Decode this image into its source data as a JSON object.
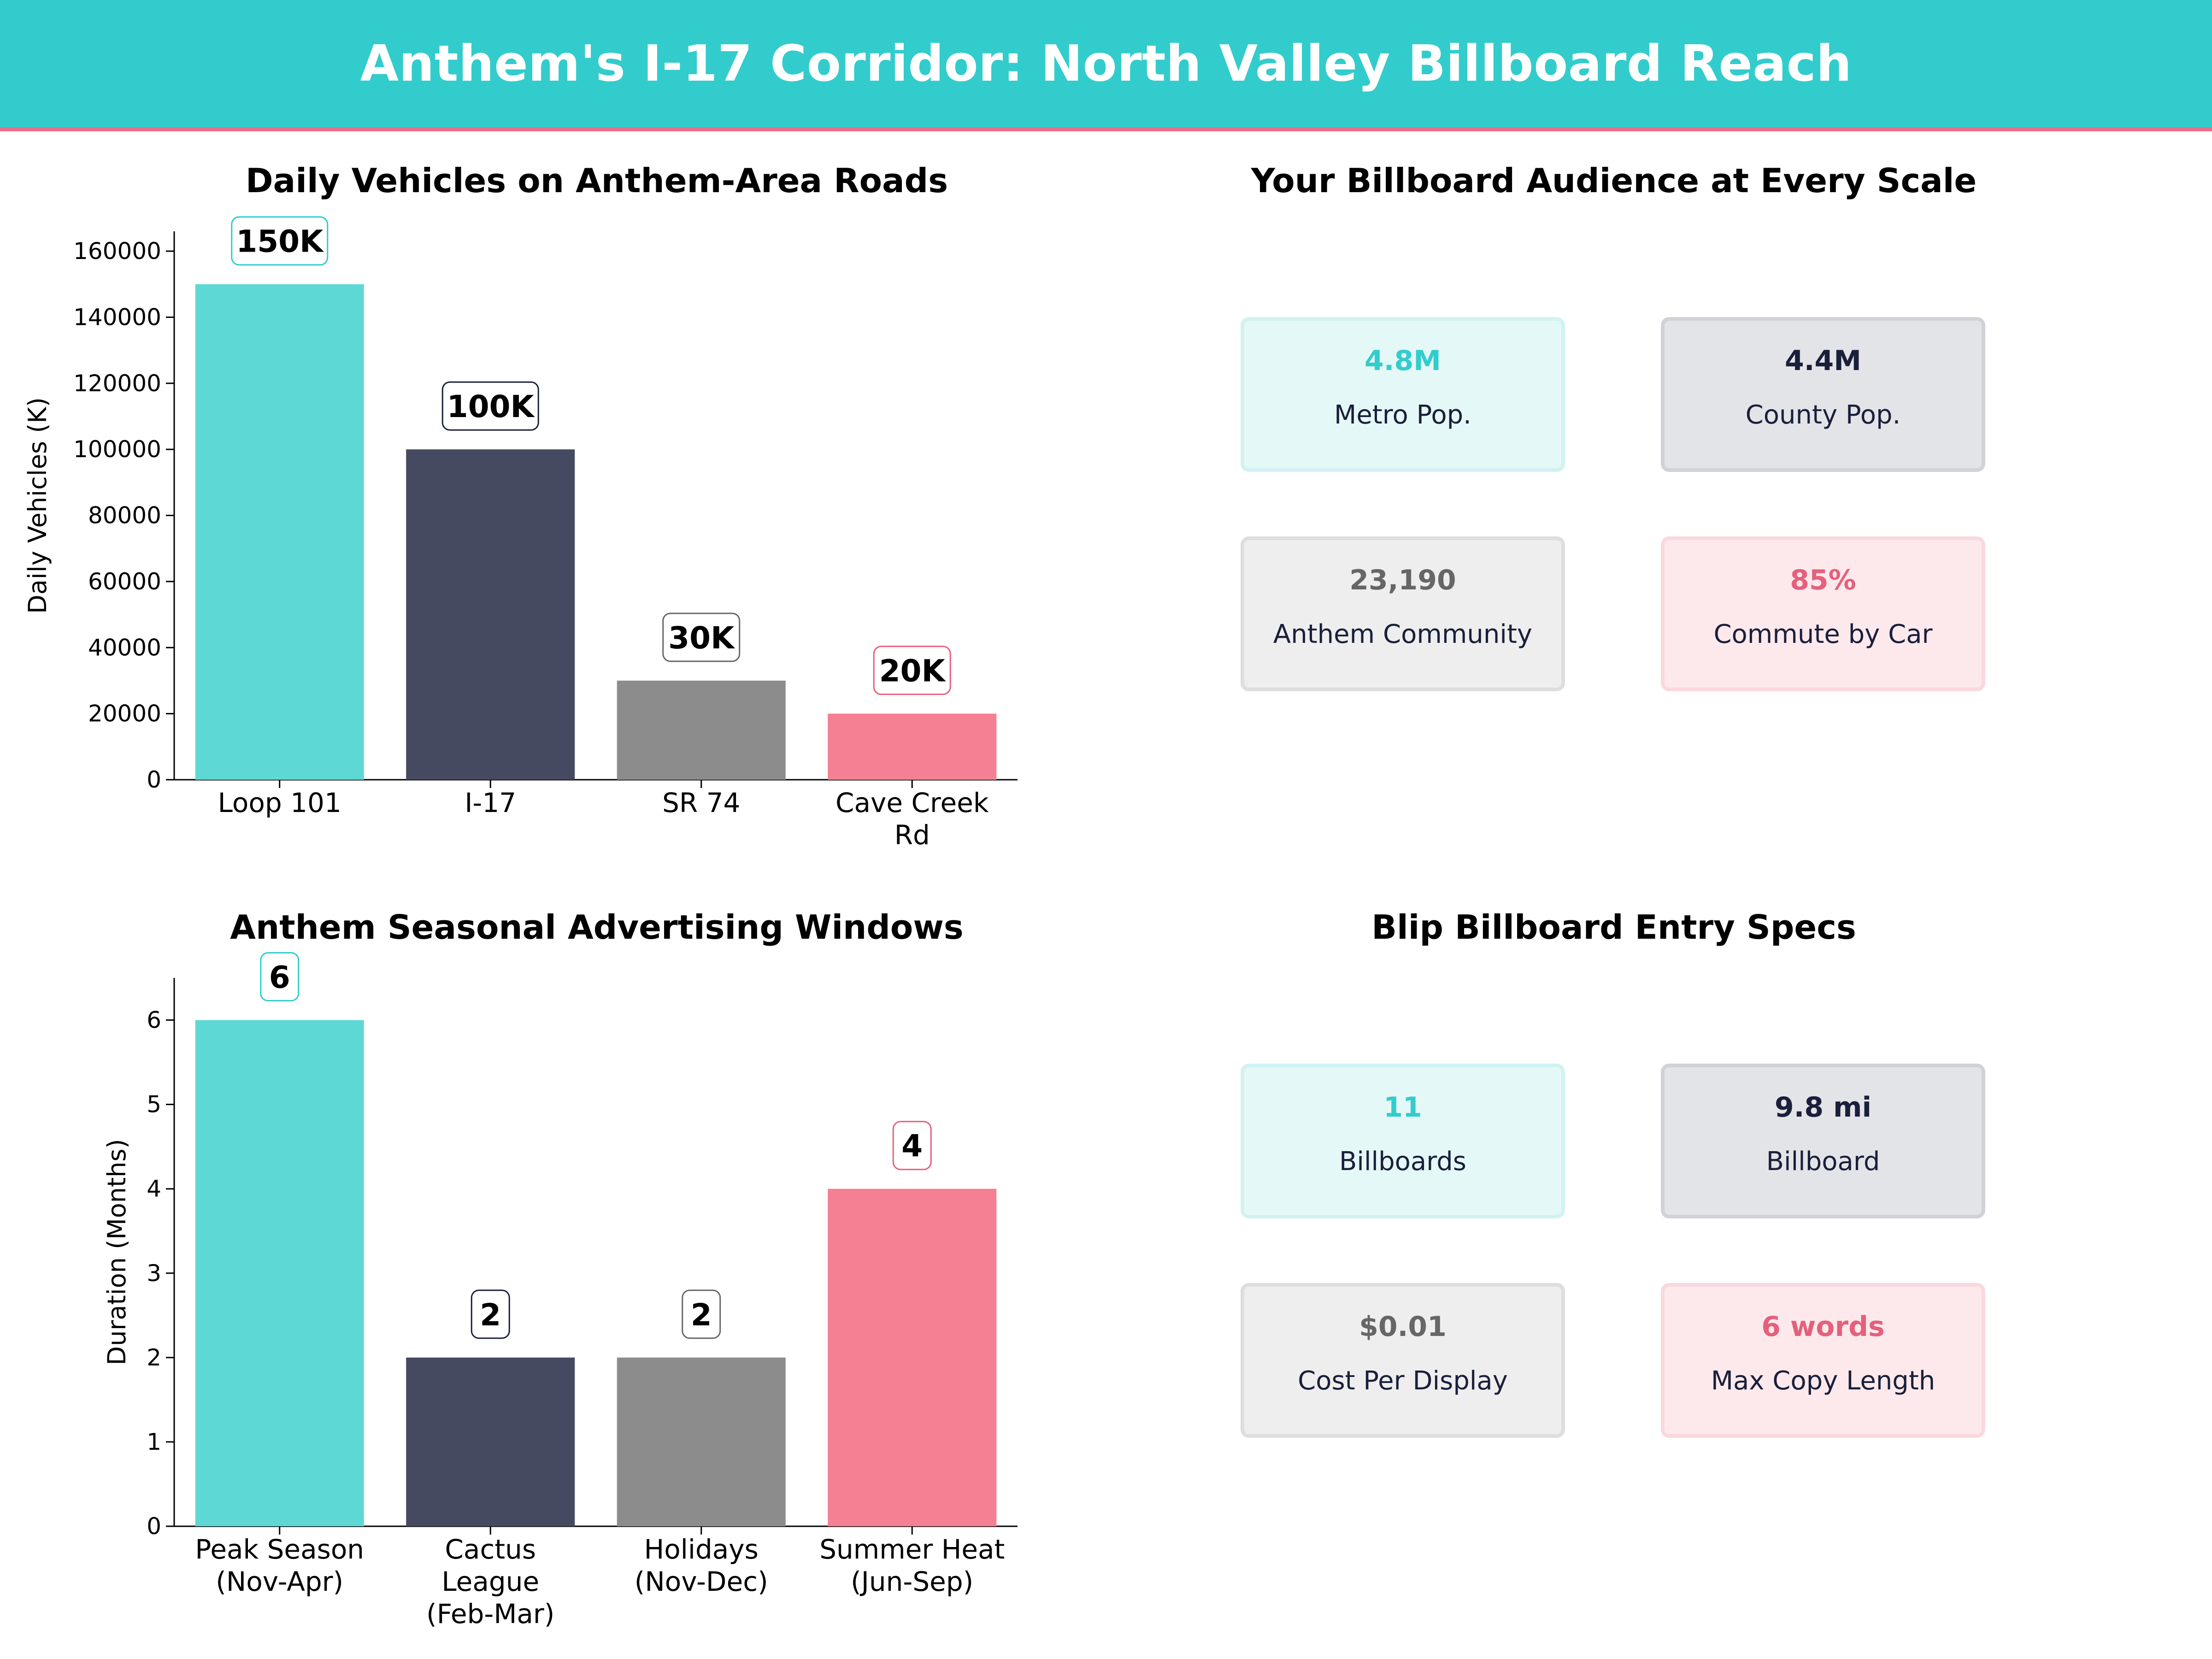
{
  "page_title": "Anthem's I-17 Corridor: North Valley Billboard Reach",
  "colors": {
    "teal": "#5ed8d5",
    "navy": "#464a60",
    "gray": "#8c8c8c",
    "pink": "#f57f93",
    "accent_line": "#ea6f88"
  },
  "chart_data": [
    {
      "type": "bar",
      "title": "Daily Vehicles on Anthem-Area Roads",
      "xlabel": "",
      "ylabel": "Daily Vehicles (K)",
      "categories": [
        [
          "Loop 101"
        ],
        [
          "I-17"
        ],
        [
          "SR 74"
        ],
        [
          "Cave Creek",
          "Rd"
        ]
      ],
      "values": [
        150000,
        100000,
        30000,
        20000
      ],
      "data_labels": [
        "150K",
        "100K",
        "30K",
        "20K"
      ],
      "ylim": [
        0,
        166000
      ],
      "yticks": [
        0,
        20000,
        40000,
        60000,
        80000,
        100000,
        120000,
        140000,
        160000
      ],
      "grid": false
    },
    {
      "type": "bar",
      "title": "Anthem Seasonal Advertising Windows",
      "xlabel": "",
      "ylabel": "Duration (Months)",
      "categories": [
        [
          "Peak Season",
          "(Nov-Apr)"
        ],
        [
          "Cactus",
          "League",
          "(Feb-Mar)"
        ],
        [
          "Holidays",
          "(Nov-Dec)"
        ],
        [
          "Summer Heat",
          "(Jun-Sep)"
        ]
      ],
      "values": [
        6,
        2,
        2,
        4
      ],
      "data_labels": [
        "6",
        "2",
        "2",
        "4"
      ],
      "ylim": [
        0,
        6.5
      ],
      "yticks": [
        0,
        1,
        2,
        3,
        4,
        5,
        6
      ],
      "grid": false
    }
  ],
  "audience": {
    "title": "Your Billboard Audience at Every Scale",
    "cards": [
      {
        "value": "4.8M",
        "label": "Metro Pop."
      },
      {
        "value": "4.4M",
        "label": "County Pop."
      },
      {
        "value": "23,190",
        "label": "Anthem Community"
      },
      {
        "value": "85%",
        "label": "Commute by Car"
      }
    ]
  },
  "specs": {
    "title": "Blip Billboard Entry Specs",
    "cards": [
      {
        "value": "11",
        "label": "Billboards"
      },
      {
        "value": "9.8 mi",
        "label": "Billboard"
      },
      {
        "value": "$0.01",
        "label": "Cost Per Display"
      },
      {
        "value": "6 words",
        "label": "Max Copy Length"
      }
    ]
  }
}
